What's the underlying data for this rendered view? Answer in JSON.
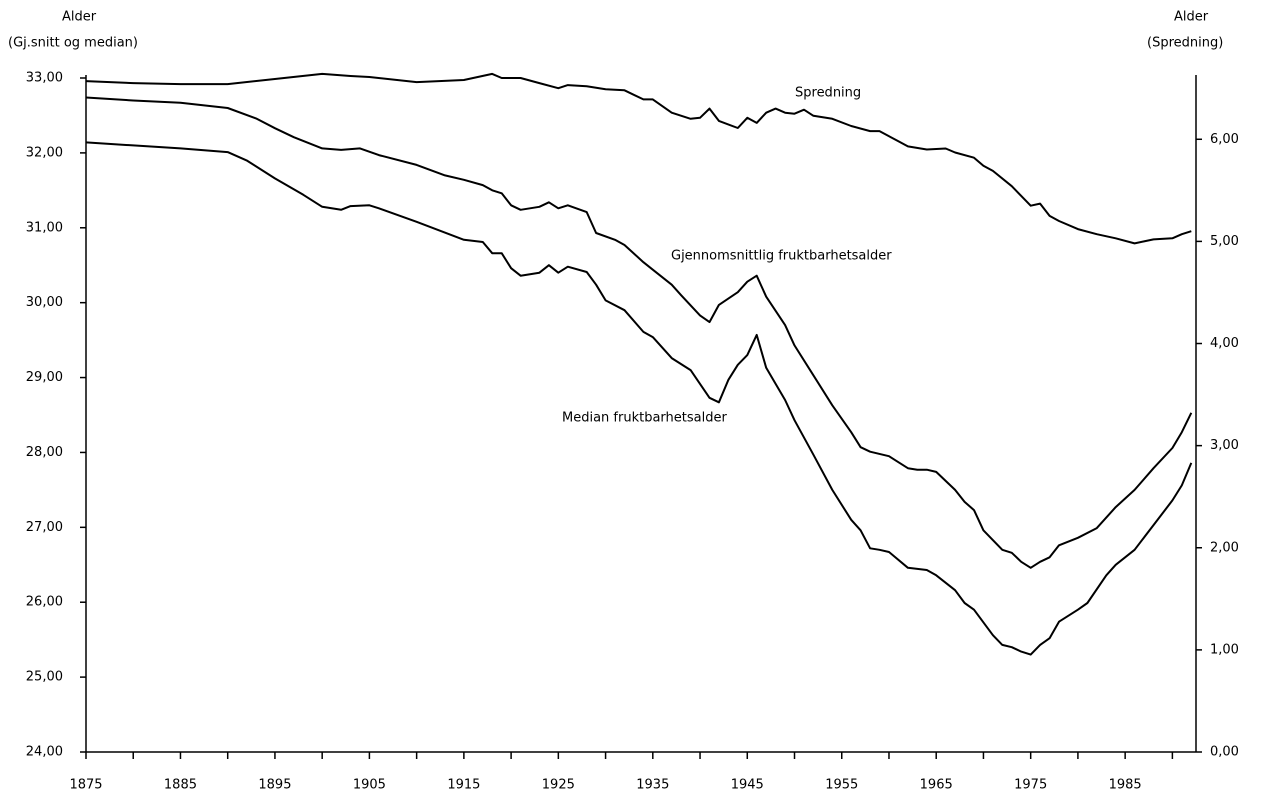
{
  "chart_data": {
    "type": "line",
    "y_label": [
      "Alder",
      "(Gj.snitt og median)"
    ],
    "y2_label": [
      "Alder",
      "(Spredning)"
    ],
    "xlim": [
      1875,
      1992.5
    ],
    "xticks": [
      1875,
      1885,
      1895,
      1905,
      1915,
      1925,
      1935,
      1945,
      1955,
      1965,
      1975,
      1985
    ],
    "xminorticks": [
      1880,
      1890,
      1900,
      1910,
      1920,
      1930,
      1940,
      1950,
      1960,
      1970,
      1980,
      1990
    ],
    "ylim": [
      24,
      33
    ],
    "yticks": [
      {
        "value": 24,
        "label": "24,00"
      },
      {
        "value": 25,
        "label": "25,00"
      },
      {
        "value": 26,
        "label": "26,00"
      },
      {
        "value": 27,
        "label": "27,00"
      },
      {
        "value": 28,
        "label": "28,00"
      },
      {
        "value": 29,
        "label": "29,00"
      },
      {
        "value": 30,
        "label": "30,00"
      },
      {
        "value": 31,
        "label": "31,00"
      },
      {
        "value": 32,
        "label": "32,00"
      },
      {
        "value": 33,
        "label": "33,00"
      }
    ],
    "y2lim": [
      0,
      6.6
    ],
    "y2ticks": [
      {
        "value": 0,
        "label": "0,00"
      },
      {
        "value": 1,
        "label": "1,00"
      },
      {
        "value": 2,
        "label": "2,00"
      },
      {
        "value": 3,
        "label": "3,00"
      },
      {
        "value": 4,
        "label": "4,00"
      },
      {
        "value": 5,
        "label": "5,00"
      },
      {
        "value": 6,
        "label": "6,00"
      }
    ],
    "grid": false,
    "series": [
      {
        "name": "Spredning",
        "color": "#000000",
        "axis": "y2",
        "x": [
          1875,
          1880,
          1885,
          1890,
          1895,
          1900,
          1903,
          1905,
          1910,
          1915,
          1918,
          1919,
          1921,
          1923,
          1925,
          1926,
          1928,
          1930,
          1932,
          1934,
          1935,
          1937,
          1939,
          1940,
          1941,
          1942,
          1944,
          1945,
          1946,
          1947,
          1948,
          1949,
          1950,
          1951,
          1952,
          1954,
          1956,
          1958,
          1959,
          1961,
          1962,
          1964,
          1966,
          1967,
          1969,
          1970,
          1971,
          1973,
          1975,
          1976,
          1977,
          1978,
          1980,
          1982,
          1984,
          1986,
          1987,
          1988,
          1990,
          1991,
          1992
        ],
        "values": [
          6.57,
          6.55,
          6.54,
          6.54,
          6.59,
          6.64,
          6.62,
          6.61,
          6.56,
          6.58,
          6.64,
          6.6,
          6.6,
          6.55,
          6.5,
          6.53,
          6.52,
          6.49,
          6.48,
          6.39,
          6.39,
          6.26,
          6.2,
          6.21,
          6.3,
          6.18,
          6.11,
          6.21,
          6.16,
          6.26,
          6.3,
          6.26,
          6.25,
          6.29,
          6.23,
          6.2,
          6.13,
          6.08,
          6.08,
          5.98,
          5.93,
          5.9,
          5.91,
          5.87,
          5.82,
          5.74,
          5.69,
          5.54,
          5.35,
          5.37,
          5.25,
          5.2,
          5.12,
          5.07,
          5.03,
          4.98,
          5.0,
          5.02,
          5.03,
          5.07,
          5.1
        ]
      },
      {
        "name": "Gjennomsnittlig fruktbarhetsalder",
        "color": "#000000",
        "axis": "y",
        "x": [
          1875,
          1880,
          1885,
          1890,
          1893,
          1895,
          1897,
          1900,
          1902,
          1904,
          1906,
          1910,
          1913,
          1915,
          1917,
          1918,
          1919,
          1920,
          1921,
          1923,
          1924,
          1925,
          1926,
          1928,
          1929,
          1931,
          1932,
          1934,
          1935,
          1937,
          1938,
          1940,
          1941,
          1942,
          1944,
          1945,
          1946,
          1947,
          1949,
          1950,
          1952,
          1954,
          1956,
          1957,
          1958,
          1960,
          1961,
          1962,
          1963,
          1964,
          1965,
          1967,
          1968,
          1969,
          1970,
          1972,
          1973,
          1974,
          1975,
          1976,
          1977,
          1978,
          1980,
          1982,
          1984,
          1986,
          1988,
          1990,
          1991,
          1992
        ],
        "values": [
          32.74,
          32.7,
          32.67,
          32.6,
          32.46,
          32.33,
          32.21,
          32.06,
          32.04,
          32.06,
          31.97,
          31.84,
          31.7,
          31.64,
          31.57,
          31.5,
          31.46,
          31.3,
          31.24,
          31.28,
          31.34,
          31.26,
          31.3,
          31.21,
          30.93,
          30.84,
          30.77,
          30.54,
          30.44,
          30.24,
          30.1,
          29.83,
          29.74,
          29.97,
          30.14,
          30.28,
          30.36,
          30.08,
          29.7,
          29.43,
          29.03,
          28.63,
          28.27,
          28.07,
          28.01,
          27.95,
          27.87,
          27.79,
          27.77,
          27.77,
          27.74,
          27.5,
          27.34,
          27.23,
          26.96,
          26.7,
          26.66,
          26.54,
          26.46,
          26.54,
          26.6,
          26.76,
          26.86,
          26.99,
          27.27,
          27.5,
          27.79,
          28.06,
          28.27,
          28.53
        ]
      },
      {
        "name": "Median fruktbarhetsalder",
        "color": "#000000",
        "axis": "y",
        "x": [
          1875,
          1880,
          1885,
          1890,
          1892,
          1895,
          1898,
          1900,
          1902,
          1903,
          1905,
          1906,
          1910,
          1915,
          1917,
          1918,
          1919,
          1920,
          1921,
          1923,
          1924,
          1925,
          1926,
          1928,
          1929,
          1930,
          1932,
          1934,
          1935,
          1937,
          1939,
          1941,
          1942,
          1943,
          1944,
          1945,
          1946,
          1947,
          1949,
          1950,
          1952,
          1954,
          1956,
          1957,
          1958,
          1959,
          1960,
          1962,
          1964,
          1965,
          1967,
          1968,
          1969,
          1971,
          1972,
          1973,
          1974,
          1975,
          1976,
          1977,
          1978,
          1980,
          1981,
          1983,
          1984,
          1986,
          1988,
          1990,
          1991,
          1992
        ],
        "values": [
          32.14,
          32.1,
          32.06,
          32.01,
          31.9,
          31.66,
          31.44,
          31.28,
          31.24,
          31.29,
          31.3,
          31.26,
          31.08,
          30.84,
          30.81,
          30.66,
          30.66,
          30.46,
          30.36,
          30.4,
          30.5,
          30.4,
          30.48,
          30.41,
          30.24,
          30.03,
          29.9,
          29.61,
          29.54,
          29.26,
          29.1,
          28.73,
          28.67,
          28.97,
          29.17,
          29.3,
          29.57,
          29.13,
          28.7,
          28.43,
          27.97,
          27.5,
          27.1,
          26.96,
          26.72,
          26.7,
          26.67,
          26.46,
          26.43,
          26.36,
          26.16,
          25.99,
          25.9,
          25.56,
          25.43,
          25.4,
          25.34,
          25.3,
          25.43,
          25.52,
          25.74,
          25.9,
          25.99,
          26.36,
          26.5,
          26.7,
          27.03,
          27.36,
          27.56,
          27.86
        ]
      }
    ]
  }
}
